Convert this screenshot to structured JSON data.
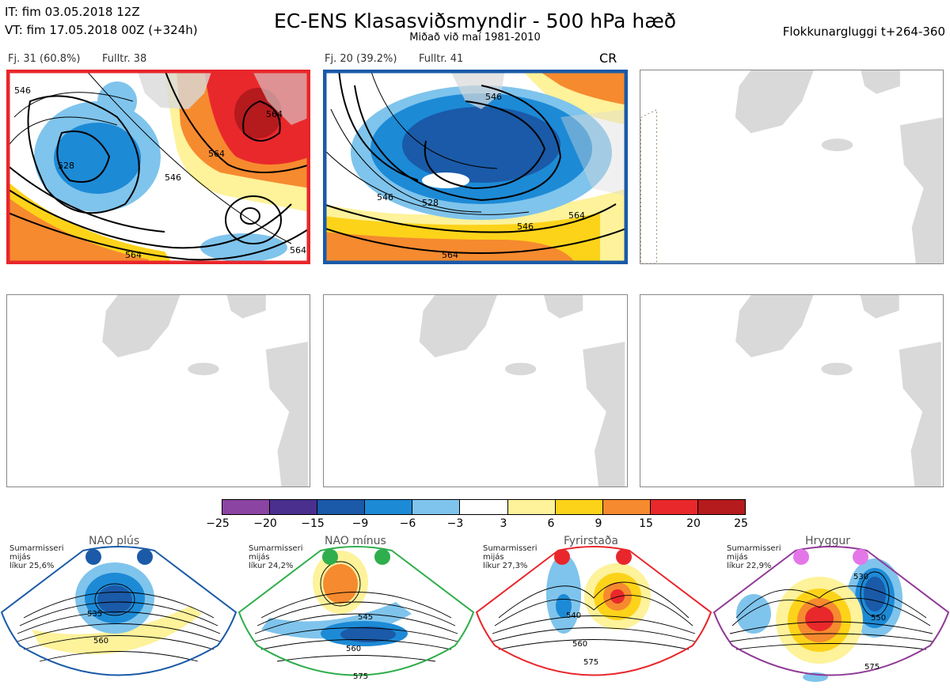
{
  "header": {
    "it": "IT: fim 03.05.2018 12Z",
    "vt": "VT: fim 17.05.2018 00Z  (+324h)",
    "title": "EC-ENS Klasasviðsmyndir - 500 hPa hæð",
    "subtitle": "Miðað við maí 1981-2010",
    "window": "Flokkunargluggi t+264-360"
  },
  "panels": [
    {
      "fj": "Fj. 31 (60.8%)",
      "fulltr": "Fulltr. 38",
      "border": "#e8262b",
      "regime": "",
      "contours": [
        "528",
        "546",
        "546",
        "564",
        "564",
        "564",
        "564"
      ]
    },
    {
      "fj": "Fj. 20 (39.2%)",
      "fulltr": "Fulltr. 41",
      "border": "#1a5aa8",
      "regime": "CR",
      "contours": [
        "546",
        "528",
        "546",
        "546",
        "564",
        "564"
      ]
    },
    {
      "fj": "",
      "fulltr": "",
      "border": "",
      "regime": "",
      "contours": []
    },
    {
      "fj": "",
      "fulltr": "",
      "border": "",
      "regime": "",
      "contours": []
    },
    {
      "fj": "",
      "fulltr": "",
      "border": "",
      "regime": "",
      "contours": []
    },
    {
      "fj": "",
      "fulltr": "",
      "border": "",
      "regime": "",
      "contours": []
    }
  ],
  "colorbar": {
    "ticks": [
      "−25",
      "−20",
      "−15",
      "−9",
      "−6",
      "−3",
      "3",
      "6",
      "9",
      "15",
      "20",
      "25"
    ],
    "colors": [
      "#8c44a3",
      "#4a2f8f",
      "#1a5aa8",
      "#1d8ad6",
      "#7fc4ec",
      "#ffffff",
      "#fef29a",
      "#fdd31a",
      "#f68a2f",
      "#e9282b",
      "#b51a1d"
    ]
  },
  "regimes": [
    {
      "name": "NAO plús",
      "line1": "Sumarmisseri",
      "line2": "mijás",
      "line3": "líkur 25,6%",
      "color": "#1a5aa8",
      "contours": [
        "535",
        "560"
      ]
    },
    {
      "name": "NAO mínus",
      "line1": "Sumarmisseri",
      "line2": "mijás",
      "line3": "líkur 24,2%",
      "color": "#2fae4d",
      "contours": [
        "545",
        "560",
        "575"
      ]
    },
    {
      "name": "Fyrirstaða",
      "line1": "Sumarmisseri",
      "line2": "mijás",
      "line3": "líkur 27,3%",
      "color": "#e8262b",
      "contours": [
        "540",
        "560",
        "575"
      ]
    },
    {
      "name": "Hryggur",
      "line1": "Sumarmisseri",
      "line2": "mijás",
      "line3": "líkur 22,9%",
      "color": "#8f3a96",
      "contours": [
        "530",
        "550",
        "575"
      ]
    }
  ]
}
